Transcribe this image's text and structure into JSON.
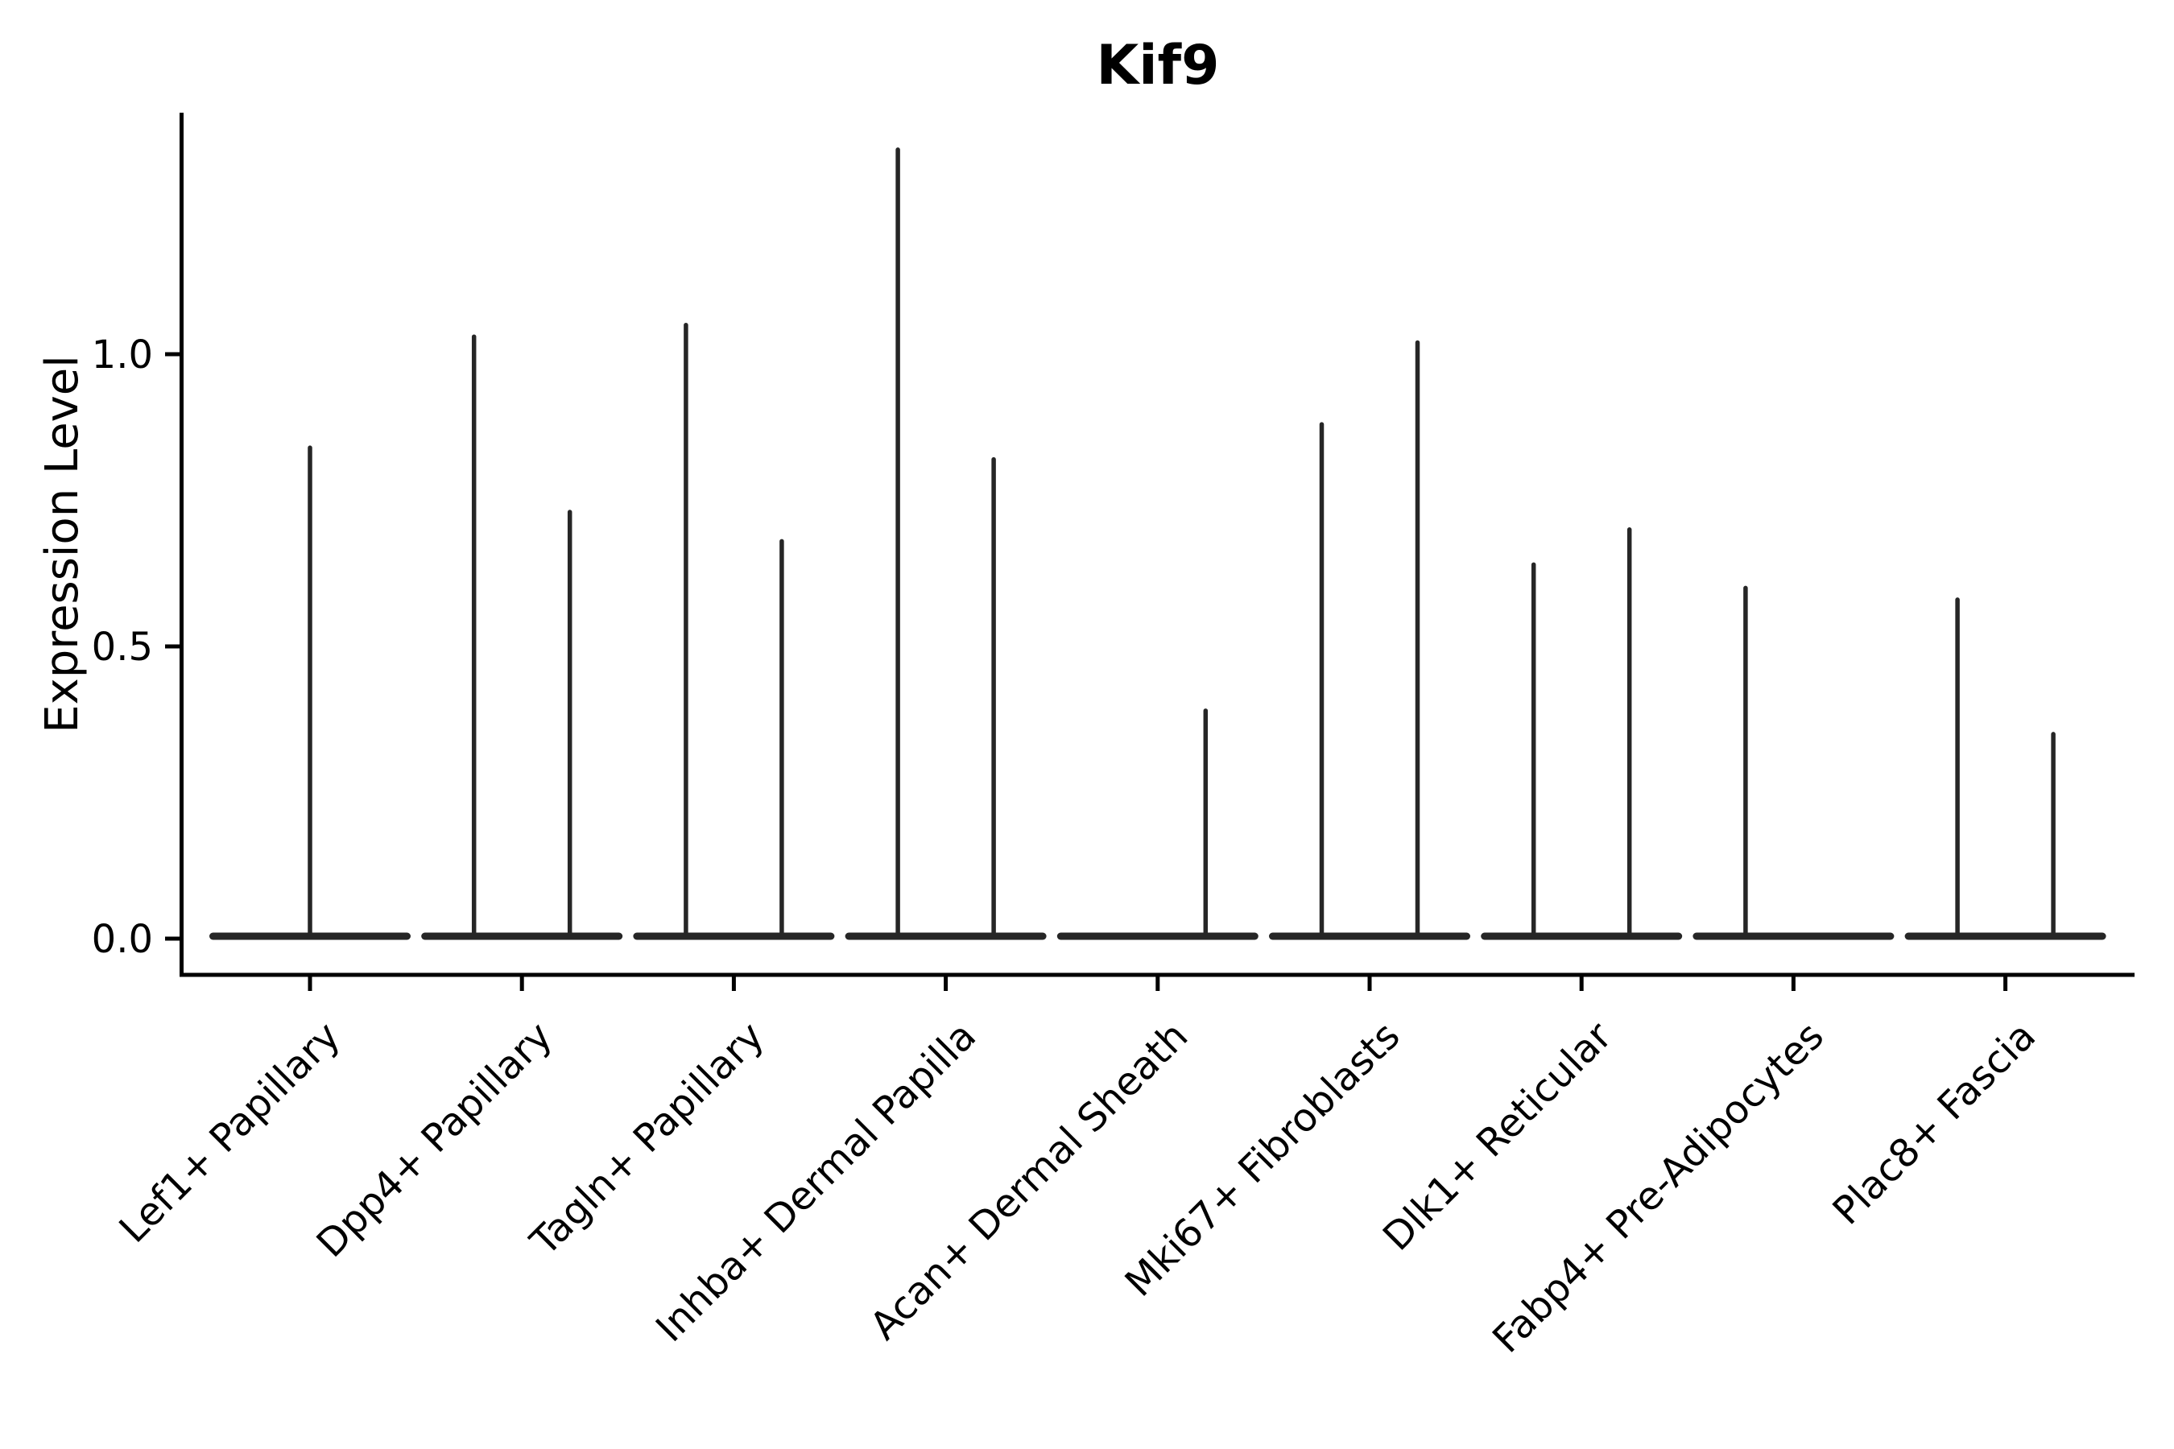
{
  "figure": {
    "background_color": "#ffffff",
    "violin_color": "#262626",
    "axis_color": "#000000"
  },
  "chart_data": {
    "type": "violin",
    "title": "Kif9",
    "xlabel": "",
    "ylabel": "Expression Level",
    "ylim": [
      -0.065,
      1.41
    ],
    "grid": false,
    "legend_position": "none",
    "yticks": [
      {
        "label": "0.0",
        "value": 0.0
      },
      {
        "label": "0.5",
        "value": 0.5
      },
      {
        "label": "1.0",
        "value": 1.0
      }
    ],
    "categories": [
      "Lef1+ Papillary",
      "Dpp4+ Papillary",
      "Tagln+ Papillary",
      "Inhba+ Dermal Papilla",
      "Acan+ Dermal Sheath",
      "Mki67+ Fibroblasts",
      "Dlk1+ Reticular",
      "Fabp4+ Pre-Adipocytes",
      "Plac8+ Fascia"
    ],
    "baseline_value": 0.0,
    "violins": [
      {
        "category": "Lef1+ Papillary",
        "spikes": [
          {
            "position": "center",
            "max_expression": 0.84
          }
        ]
      },
      {
        "category": "Dpp4+ Papillary",
        "spikes": [
          {
            "position": "left",
            "max_expression": 1.03
          },
          {
            "position": "right",
            "max_expression": 0.73
          }
        ]
      },
      {
        "category": "Tagln+ Papillary",
        "spikes": [
          {
            "position": "left",
            "max_expression": 1.05
          },
          {
            "position": "right",
            "max_expression": 0.68
          }
        ]
      },
      {
        "category": "Inhba+ Dermal Papilla",
        "spikes": [
          {
            "position": "left",
            "max_expression": 1.35
          },
          {
            "position": "right",
            "max_expression": 0.82
          }
        ]
      },
      {
        "category": "Acan+ Dermal Sheath",
        "spikes": [
          {
            "position": "right",
            "max_expression": 0.39
          }
        ]
      },
      {
        "category": "Mki67+ Fibroblasts",
        "spikes": [
          {
            "position": "left",
            "max_expression": 0.88
          },
          {
            "position": "right",
            "max_expression": 1.02
          }
        ]
      },
      {
        "category": "Dlk1+ Reticular",
        "spikes": [
          {
            "position": "left",
            "max_expression": 0.64
          },
          {
            "position": "right",
            "max_expression": 0.7
          }
        ]
      },
      {
        "category": "Fabp4+ Pre-Adipocytes",
        "spikes": [
          {
            "position": "left",
            "max_expression": 0.6
          }
        ]
      },
      {
        "category": "Plac8+ Fascia",
        "spikes": [
          {
            "position": "left",
            "max_expression": 0.58
          },
          {
            "position": "right",
            "max_expression": 0.35
          }
        ]
      }
    ]
  }
}
